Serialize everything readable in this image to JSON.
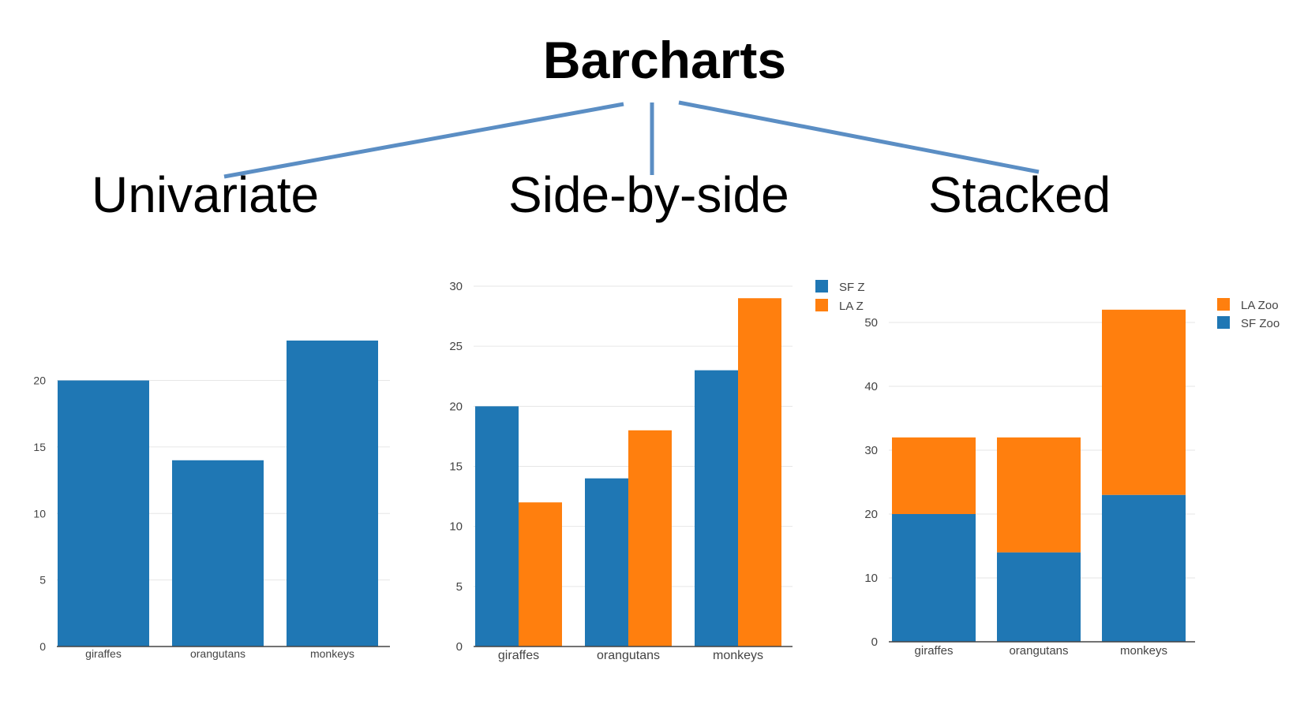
{
  "title": "Barcharts",
  "subtitles": [
    "Univariate",
    "Side-by-side",
    "Stacked"
  ],
  "colors": {
    "blue": "#1f77b4",
    "orange": "#ff7f0e",
    "connector": "#5b8ec4",
    "grid": "#e6e6e6",
    "axis": "#444444",
    "text": "#444444"
  },
  "chart_data": [
    {
      "type": "bar",
      "title": "",
      "categories": [
        "giraffes",
        "orangutans",
        "monkeys"
      ],
      "series": [
        {
          "values": [
            20,
            14,
            23
          ]
        }
      ],
      "yticks": [
        0,
        5,
        10,
        15,
        20
      ],
      "ylim": [
        0,
        24.3
      ],
      "grid": true,
      "legend": null
    },
    {
      "type": "bar",
      "barmode": "group",
      "title": "",
      "categories": [
        "giraffes",
        "orangutans",
        "monkeys"
      ],
      "series": [
        {
          "name": "SF Z",
          "values": [
            20,
            14,
            23
          ]
        },
        {
          "name": "LA Z",
          "values": [
            12,
            18,
            29
          ]
        }
      ],
      "yticks": [
        0,
        5,
        10,
        15,
        20,
        25,
        30
      ],
      "ylim": [
        0,
        30
      ],
      "grid": true,
      "legend": "top-right"
    },
    {
      "type": "bar",
      "barmode": "stack",
      "title": "",
      "categories": [
        "giraffes",
        "orangutans",
        "monkeys"
      ],
      "series": [
        {
          "name": "SF Zoo",
          "values": [
            20,
            14,
            23
          ]
        },
        {
          "name": "LA Zoo",
          "values": [
            12,
            18,
            29
          ]
        }
      ],
      "legend_order": [
        "LA Zoo",
        "SF Zoo"
      ],
      "yticks": [
        0,
        10,
        20,
        30,
        40,
        50
      ],
      "ylim": [
        0,
        50
      ],
      "grid": true,
      "legend": "top-right"
    }
  ]
}
